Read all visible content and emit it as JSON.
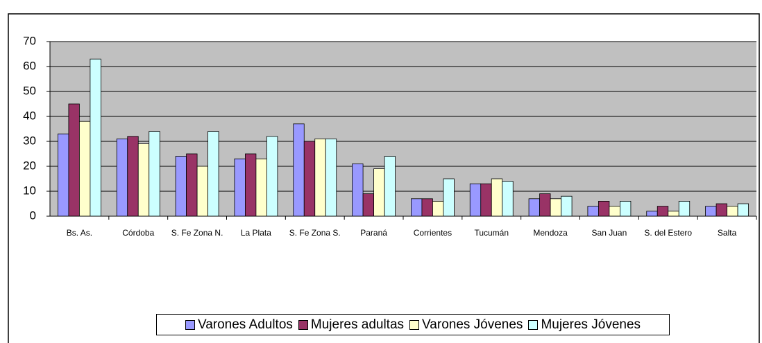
{
  "chart_data": {
    "type": "bar",
    "categories": [
      "Bs. As.",
      "Córdoba",
      "S. Fe Zona N.",
      "La Plata",
      "S. Fe Zona S.",
      "Paraná",
      "Corrientes",
      "Tucumán",
      "Mendoza",
      "San Juan",
      "S. del Estero",
      "Salta"
    ],
    "series": [
      {
        "name": "Varones Adultos",
        "color": "#9999ff",
        "values": [
          33,
          31,
          24,
          23,
          37,
          21,
          7,
          13,
          7,
          4,
          2,
          4
        ]
      },
      {
        "name": "Mujeres adultas",
        "color": "#993366",
        "values": [
          45,
          32,
          25,
          25,
          30,
          9,
          7,
          13,
          9,
          6,
          4,
          5
        ]
      },
      {
        "name": "Varones Jóvenes",
        "color": "#ffffcc",
        "values": [
          38,
          29,
          20,
          23,
          31,
          19,
          6,
          15,
          7,
          4,
          2,
          4
        ]
      },
      {
        "name": "Mujeres Jóvenes",
        "color": "#ccffff",
        "values": [
          63,
          34,
          34,
          32,
          31,
          24,
          15,
          14,
          8,
          6,
          6,
          5
        ]
      }
    ],
    "ylim": [
      0,
      70
    ],
    "yticks": [
      0,
      10,
      20,
      30,
      40,
      50,
      60,
      70
    ],
    "grid": true,
    "legend": "bottom"
  }
}
